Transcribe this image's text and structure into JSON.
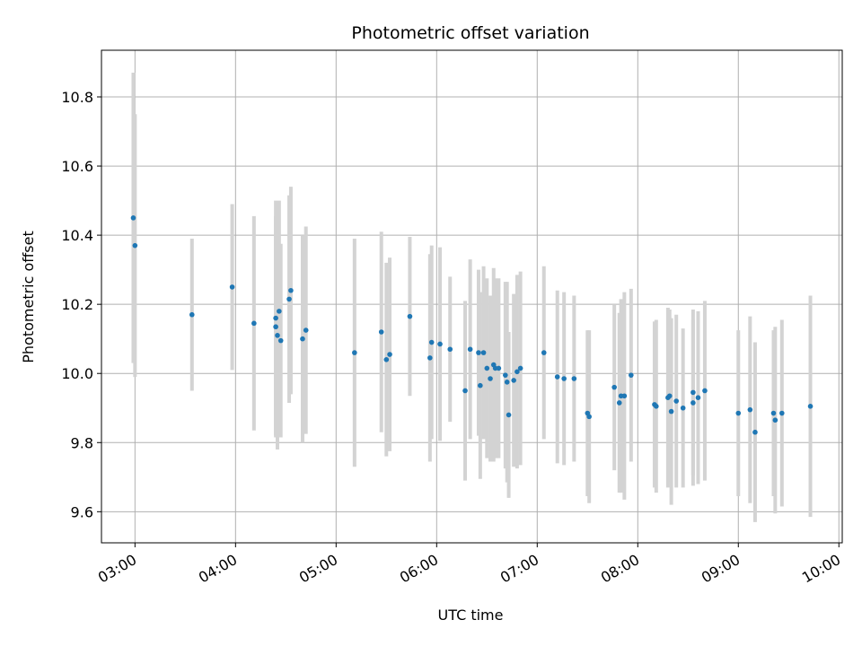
{
  "chart_data": {
    "type": "scatter",
    "title": "Photometric offset variation",
    "xlabel": "UTC time",
    "ylabel": "Photometric offset",
    "x_axis_type": "time",
    "xlim": [
      "02:40",
      "10:02"
    ],
    "ylim": [
      9.51,
      10.935
    ],
    "x_ticks": [
      "03:00",
      "04:00",
      "05:00",
      "06:00",
      "07:00",
      "08:00",
      "09:00",
      "10:00"
    ],
    "y_ticks": [
      9.6,
      9.8,
      10.0,
      10.2,
      10.4,
      10.6,
      10.8
    ],
    "y_tick_labels": [
      "9.6",
      "9.8",
      "10.0",
      "10.2",
      "10.4",
      "10.6",
      "10.8"
    ],
    "x_tick_rotation": 30,
    "grid": true,
    "legend": "none",
    "colors": {
      "point": "#1f77b4",
      "errorbar": "#d3d3d3",
      "grid": "#b0b0b0"
    },
    "series": [
      {
        "x": [
          "02:59",
          "03:00",
          "03:34",
          "03:58",
          "04:11",
          "04:24",
          "04:24",
          "04:25",
          "04:26",
          "04:27",
          "04:32",
          "04:33",
          "04:40",
          "04:42",
          "05:11",
          "05:27",
          "05:30",
          "05:32",
          "05:44",
          "05:56",
          "05:57",
          "06:02",
          "06:08",
          "06:17",
          "06:20",
          "06:25",
          "06:26",
          "06:28",
          "06:30",
          "06:32",
          "06:34",
          "06:35",
          "06:37",
          "06:41",
          "06:42",
          "06:43",
          "06:46",
          "06:48",
          "06:50",
          "07:04",
          "07:12",
          "07:16",
          "07:22",
          "07:30",
          "07:31",
          "07:46",
          "07:49",
          "07:50",
          "07:52",
          "07:56",
          "08:10",
          "08:11",
          "08:18",
          "08:19",
          "08:20",
          "08:23",
          "08:27",
          "08:33",
          "08:33",
          "08:36",
          "08:40",
          "09:00",
          "09:07",
          "09:10",
          "09:21",
          "09:22",
          "09:26",
          "09:43"
        ],
        "y": [
          10.45,
          10.37,
          10.17,
          10.25,
          10.145,
          10.135,
          10.16,
          10.11,
          10.18,
          10.095,
          10.215,
          10.24,
          10.1,
          10.125,
          10.06,
          10.12,
          10.04,
          10.055,
          10.165,
          10.045,
          10.09,
          10.085,
          10.07,
          9.95,
          10.07,
          10.06,
          9.965,
          10.06,
          10.015,
          9.985,
          10.025,
          10.015,
          10.015,
          9.995,
          9.975,
          9.88,
          9.98,
          10.005,
          10.015,
          10.06,
          9.99,
          9.985,
          9.985,
          9.885,
          9.875,
          9.96,
          9.915,
          9.935,
          9.935,
          9.995,
          9.91,
          9.905,
          9.93,
          9.935,
          9.89,
          9.92,
          9.9,
          9.915,
          9.945,
          9.93,
          9.95,
          9.885,
          9.895,
          9.83,
          9.885,
          9.865,
          9.885,
          9.905
        ],
        "err": [
          0.42,
          0.38,
          0.22,
          0.24,
          0.31,
          0.32,
          0.34,
          0.33,
          0.32,
          0.28,
          0.3,
          0.3,
          0.3,
          0.3,
          0.33,
          0.29,
          0.28,
          0.28,
          0.23,
          0.3,
          0.28,
          0.28,
          0.21,
          0.26,
          0.26,
          0.24,
          0.27,
          0.25,
          0.26,
          0.24,
          0.28,
          0.26,
          0.26,
          0.27,
          0.29,
          0.24,
          0.25,
          0.28,
          0.28,
          0.25,
          0.25,
          0.25,
          0.24,
          0.24,
          0.25,
          0.24,
          0.26,
          0.28,
          0.3,
          0.25,
          0.24,
          0.25,
          0.26,
          0.25,
          0.27,
          0.25,
          0.23,
          0.24,
          0.24,
          0.25,
          0.26,
          0.24,
          0.27,
          0.26,
          0.24,
          0.27,
          0.27,
          0.32
        ]
      }
    ]
  }
}
